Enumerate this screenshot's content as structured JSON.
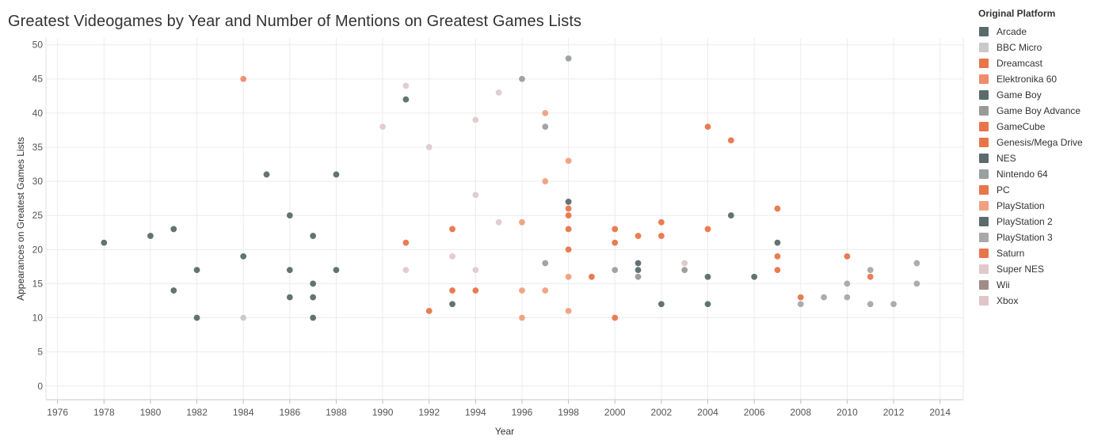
{
  "chart_data": {
    "type": "scatter",
    "title": "Greatest Videogames by Year and Number of Mentions on Greatest Games Lists",
    "xlabel": "Year",
    "ylabel": "Appearances on Greatest Games Lists",
    "xlim": [
      1975.5,
      2015
    ],
    "ylim": [
      -2,
      51
    ],
    "x_ticks": [
      "1976",
      "1978",
      "1980",
      "1982",
      "1984",
      "1986",
      "1988",
      "1990",
      "1992",
      "1994",
      "1996",
      "1998",
      "2000",
      "2002",
      "2004",
      "2006",
      "2008",
      "2010",
      "2012",
      "2014"
    ],
    "y_ticks": [
      "0",
      "5",
      "10",
      "15",
      "20",
      "25",
      "30",
      "35",
      "40",
      "45",
      "50"
    ],
    "grid": true,
    "legend_title": "Original Platform",
    "legend_placement": "right",
    "series": [
      {
        "name": "Arcade",
        "color": "#5b6b6b",
        "points": [
          [
            1978,
            21
          ],
          [
            1980,
            22
          ],
          [
            1981,
            23
          ],
          [
            1981,
            14
          ],
          [
            1982,
            17
          ],
          [
            1982,
            10
          ],
          [
            1984,
            19
          ],
          [
            1985,
            31
          ],
          [
            1986,
            25
          ],
          [
            1986,
            17
          ],
          [
            1986,
            13
          ],
          [
            1987,
            22
          ],
          [
            1987,
            15
          ],
          [
            1987,
            13
          ],
          [
            1987,
            10
          ],
          [
            1988,
            31
          ],
          [
            1988,
            17
          ],
          [
            1993,
            12
          ]
        ]
      },
      {
        "name": "BBC Micro",
        "color": "#c9c9c9",
        "points": [
          [
            1984,
            10
          ]
        ]
      },
      {
        "name": "Dreamcast",
        "color": "#e8754a",
        "points": [
          [
            1999,
            16
          ],
          [
            2000,
            23
          ],
          [
            2000,
            21
          ],
          [
            2000,
            10
          ]
        ]
      },
      {
        "name": "Elektronika 60",
        "color": "#f08c6c",
        "points": [
          [
            1984,
            45
          ]
        ]
      },
      {
        "name": "Game Boy",
        "color": "#5b6b6b",
        "points": [
          [
            1991,
            42
          ],
          [
            1998,
            27
          ]
        ]
      },
      {
        "name": "Game Boy Advance",
        "color": "#9a9a9a",
        "points": [
          [
            2001,
            16
          ],
          [
            2003,
            17
          ]
        ]
      },
      {
        "name": "GameCube",
        "color": "#e8754a",
        "points": [
          [
            2001,
            22
          ],
          [
            2002,
            22
          ],
          [
            2002,
            24
          ]
        ]
      },
      {
        "name": "Genesis/Mega Drive",
        "color": "#e8754a",
        "points": [
          [
            1991,
            21
          ],
          [
            1992,
            11
          ],
          [
            1993,
            23
          ],
          [
            1993,
            14
          ],
          [
            1994,
            14
          ]
        ]
      },
      {
        "name": "NES",
        "color": "#5b6b6b",
        "points": [
          [
            2001,
            18
          ],
          [
            2002,
            12
          ],
          [
            2004,
            16
          ],
          [
            2004,
            12
          ],
          [
            2005,
            25
          ],
          [
            2006,
            16
          ]
        ]
      },
      {
        "name": "Nintendo 64",
        "color": "#9aa0a0",
        "points": [
          [
            1996,
            45
          ],
          [
            1997,
            38
          ],
          [
            1997,
            18
          ],
          [
            1998,
            48
          ],
          [
            2000,
            17
          ]
        ]
      },
      {
        "name": "PC",
        "color": "#e8754a",
        "points": [
          [
            1998,
            26
          ],
          [
            1998,
            25
          ],
          [
            1998,
            23
          ],
          [
            1998,
            20
          ],
          [
            2004,
            38
          ],
          [
            2004,
            23
          ],
          [
            2005,
            36
          ],
          [
            2007,
            26
          ],
          [
            2007,
            19
          ],
          [
            2007,
            17
          ],
          [
            2008,
            13
          ],
          [
            2010,
            19
          ],
          [
            2011,
            16
          ]
        ]
      },
      {
        "name": "PlayStation",
        "color": "#f0a080",
        "points": [
          [
            1996,
            24
          ],
          [
            1996,
            14
          ],
          [
            1996,
            10
          ],
          [
            1997,
            40
          ],
          [
            1997,
            30
          ],
          [
            1997,
            14
          ],
          [
            1998,
            33
          ],
          [
            1998,
            16
          ],
          [
            1998,
            11
          ]
        ]
      },
      {
        "name": "PlayStation 2",
        "color": "#5b6b6b",
        "points": [
          [
            2001,
            17
          ],
          [
            2007,
            21
          ]
        ]
      },
      {
        "name": "PlayStation 3",
        "color": "#a8a8a8",
        "points": [
          [
            2008,
            12
          ],
          [
            2009,
            13
          ],
          [
            2010,
            15
          ],
          [
            2010,
            13
          ],
          [
            2011,
            17
          ],
          [
            2011,
            12
          ],
          [
            2012,
            12
          ],
          [
            2013,
            18
          ],
          [
            2013,
            15
          ]
        ]
      },
      {
        "name": "Saturn",
        "color": "#e8754a",
        "points": []
      },
      {
        "name": "Super NES",
        "color": "#e2c9cc",
        "points": [
          [
            1990,
            38
          ],
          [
            1991,
            44
          ],
          [
            1991,
            17
          ],
          [
            1992,
            35
          ],
          [
            1993,
            19
          ],
          [
            1994,
            39
          ],
          [
            1994,
            28
          ],
          [
            1994,
            17
          ],
          [
            1995,
            43
          ],
          [
            1995,
            24
          ]
        ]
      },
      {
        "name": "Wii",
        "color": "#a08c86",
        "points": []
      },
      {
        "name": "Xbox",
        "color": "#dfc5c8",
        "points": [
          [
            2003,
            18
          ]
        ]
      }
    ]
  }
}
